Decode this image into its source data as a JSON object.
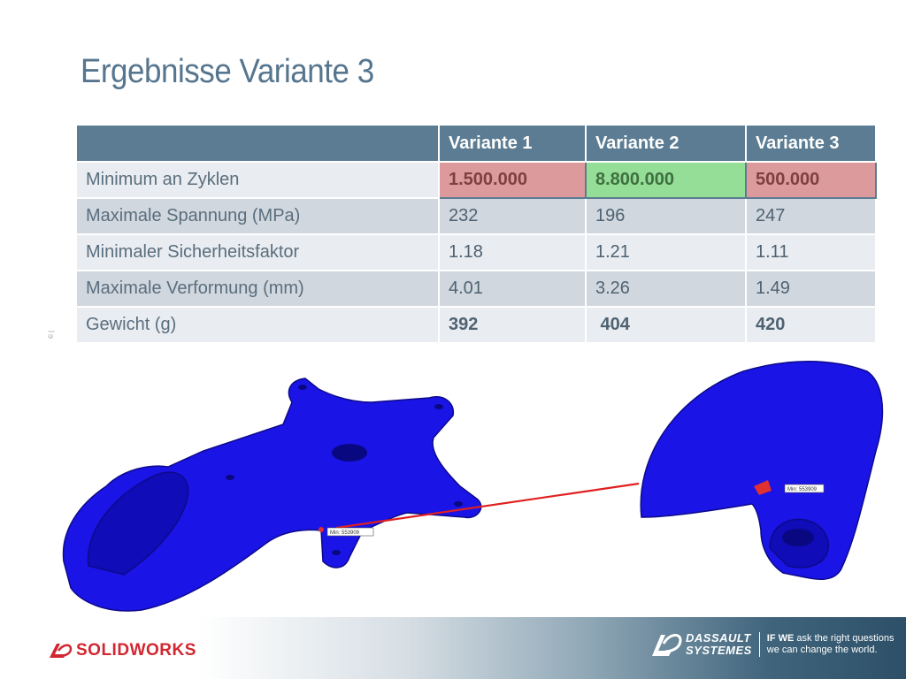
{
  "title": "Ergebnisse Variante 3",
  "table": {
    "headers": [
      "",
      "Variante 1",
      "Variante 2",
      "Variante 3"
    ],
    "rows": [
      {
        "label": "Minimum an Zyklen",
        "values": [
          "1.500.000",
          "8.800.000",
          "500.000"
        ]
      },
      {
        "label": "Maximale Spannung (MPa)",
        "values": [
          "232",
          "196",
          "247"
        ]
      },
      {
        "label": "Minimaler Sicherheitsfaktor",
        "values": [
          "1.18",
          "1.21",
          "1.11"
        ]
      },
      {
        "label": "Maximale Verformung (mm)",
        "values": [
          "4.01",
          "3.26",
          "1.49"
        ]
      },
      {
        "label": "Gewicht (g)",
        "values": [
          "392",
          " 404",
          "420"
        ]
      }
    ],
    "highlight_colors": {
      "red": "#dd9a9c",
      "green": "#94de98"
    }
  },
  "side_note": "© |",
  "annotations": {
    "left_min_label": "Min: 553909",
    "right_min_label": "Min: 553909"
  },
  "colors": {
    "header": "#5b7c92",
    "title": "#56758e",
    "part": "#1a14e6",
    "line": "#e02020"
  },
  "footer": {
    "solidworks_left": "SOLID",
    "solidworks_right": "WORKS",
    "dassault_line1": "DASSAULT",
    "dassault_line2": "SYSTEMES",
    "tagline_bold": "IF WE",
    "tagline_1": " ask the right questions",
    "tagline_2": "we can change the world."
  }
}
